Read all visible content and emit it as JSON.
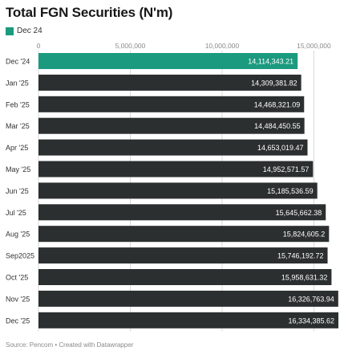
{
  "header": {
    "title": "Total FGN Securities (N'm)",
    "legend_label": "Dec 24"
  },
  "footer": {
    "source_text": "Source: Pencom • Created with Datawrapper"
  },
  "colors": {
    "highlight": "#1b9a7f",
    "bar": "#2b2f2f",
    "grid": "#d9d9d9",
    "label_dark": "#333333"
  },
  "chart_data": {
    "type": "bar",
    "orientation": "horizontal",
    "title": "Total FGN Securities (N'm)",
    "legend": [
      {
        "name": "Dec 24",
        "color": "#1b9a7f"
      }
    ],
    "categories": [
      "Dec '24",
      "Jan '25",
      "Feb '25",
      "Mar '25",
      "Apr '25",
      "May '25",
      "Jun '25",
      "Jul '25",
      "Aug '25",
      "Sep2025",
      "Oct '25",
      "Nov '25",
      "Dec '25"
    ],
    "values": [
      14114343.21,
      14309381.82,
      14468321.09,
      14484450.55,
      14653019.47,
      14952571.57,
      15185536.59,
      15645662.38,
      15824605.2,
      15746192.72,
      15958631.32,
      16326763.94,
      16334385.62
    ],
    "value_labels": [
      "14,114,343.21",
      "14,309,381.82",
      "14,468,321.09",
      "14,484,450.55",
      "14,653,019.47",
      "14,952,571.57",
      "15,185,536.59",
      "15,645,662.38",
      "15,824,605.2",
      "15,746,192.72",
      "15,958,631.32",
      "16,326,763.94",
      "16,334,385.62"
    ],
    "highlight_index": 0,
    "xlim": [
      0,
      16334385.62
    ],
    "xticks": [
      0,
      5000000,
      10000000,
      15000000
    ],
    "xtick_labels": [
      "0",
      "5,000,000",
      "10,000,000",
      "15,000,000"
    ],
    "grid": true
  }
}
